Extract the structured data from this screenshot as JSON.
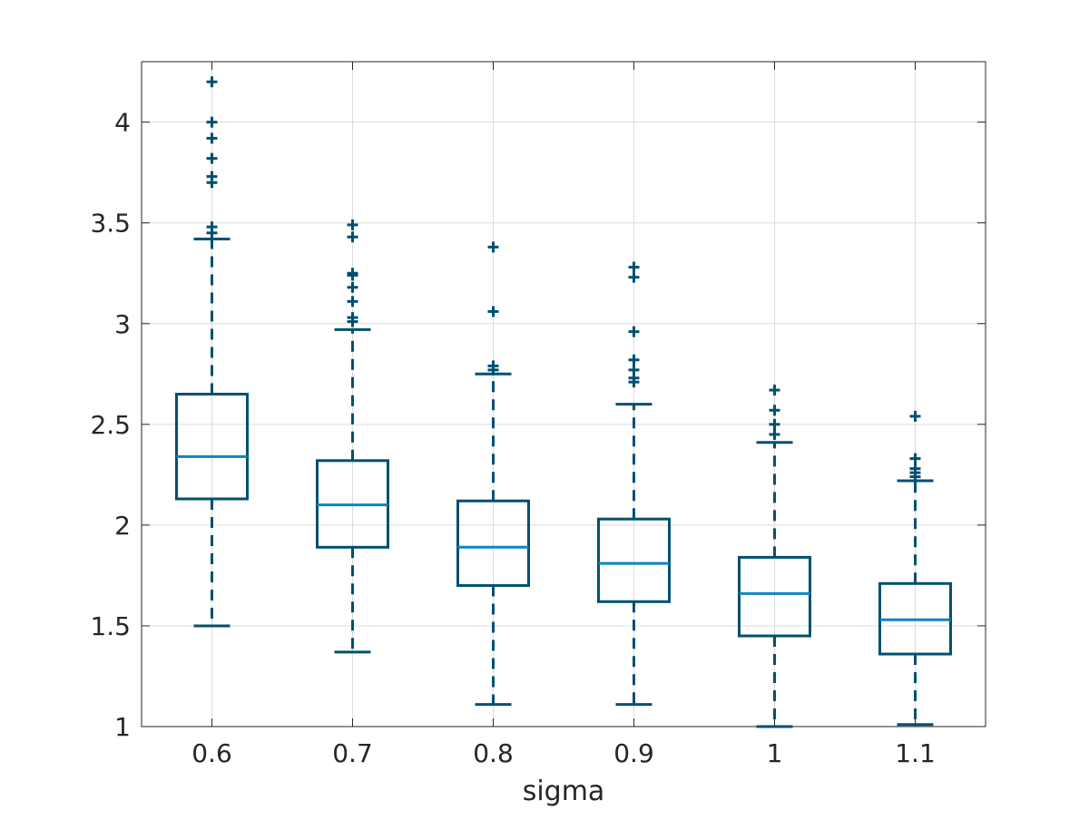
{
  "chart_data": {
    "type": "box",
    "xlabel": "sigma",
    "ylabel": "",
    "title": "",
    "ylim": [
      1,
      4.3
    ],
    "yticks": [
      1,
      1.5,
      2,
      2.5,
      3,
      3.5,
      4
    ],
    "ytick_labels": [
      "1",
      "1.5",
      "2",
      "2.5",
      "3",
      "3.5",
      "4"
    ],
    "grid": true,
    "colors": {
      "box": "#005070",
      "median": "#0a86c4",
      "grid": "#dcdcdc",
      "axis": "#262626"
    },
    "categories": [
      "0.6",
      "0.7",
      "0.8",
      "0.9",
      "1",
      "1.1"
    ],
    "boxes": [
      {
        "label": "0.6",
        "whisker_low": 1.5,
        "q1": 2.13,
        "median": 2.34,
        "q3": 2.65,
        "whisker_high": 3.42,
        "outliers": [
          3.45,
          3.48,
          3.7,
          3.73,
          3.82,
          3.92,
          4.0,
          4.2
        ]
      },
      {
        "label": "0.7",
        "whisker_low": 1.37,
        "q1": 1.89,
        "median": 2.1,
        "q3": 2.32,
        "whisker_high": 2.97,
        "outliers": [
          3.01,
          3.03,
          3.11,
          3.18,
          3.24,
          3.25,
          3.43,
          3.49
        ]
      },
      {
        "label": "0.8",
        "whisker_low": 1.11,
        "q1": 1.7,
        "median": 1.89,
        "q3": 2.12,
        "whisker_high": 2.75,
        "outliers": [
          2.77,
          2.79,
          3.06,
          3.38
        ]
      },
      {
        "label": "0.9",
        "whisker_low": 1.11,
        "q1": 1.62,
        "median": 1.81,
        "q3": 2.03,
        "whisker_high": 2.6,
        "outliers": [
          2.71,
          2.73,
          2.77,
          2.82,
          2.96,
          3.23,
          3.28
        ]
      },
      {
        "label": "1",
        "whisker_low": 1.0,
        "q1": 1.45,
        "median": 1.66,
        "q3": 1.84,
        "whisker_high": 2.41,
        "outliers": [
          2.45,
          2.5,
          2.57,
          2.67
        ]
      },
      {
        "label": "1.1",
        "whisker_low": 1.01,
        "q1": 1.36,
        "median": 1.53,
        "q3": 1.71,
        "whisker_high": 2.22,
        "outliers": [
          2.24,
          2.26,
          2.28,
          2.33,
          2.54
        ]
      }
    ]
  }
}
